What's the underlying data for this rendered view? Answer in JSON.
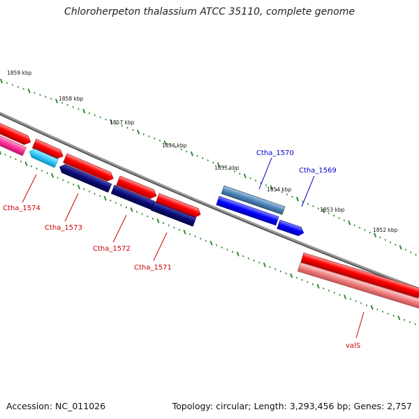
{
  "header": {
    "title": "Chloroherpeton thalassium ATCC 35110, complete genome"
  },
  "footer": {
    "accession": "Accession: NC_011026",
    "summary": "Topology: circular; Length: 3,293,456 bp; Genes: 2,757"
  },
  "ruler": {
    "labels": [
      "1859 kbp",
      "1858 kbp",
      "1857 kbp",
      "1856 kbp",
      "1855 kbp",
      "1854 kbp",
      "1853 kbp",
      "1852 kbp"
    ]
  },
  "genes": [
    {
      "label": "Ctha_1570",
      "color": "#0000cc"
    },
    {
      "label": "Ctha_1569",
      "color": "#0000cc"
    },
    {
      "label": "Ctha_1574",
      "color": "#cc0000"
    },
    {
      "label": "Ctha_1573",
      "color": "#cc0000"
    },
    {
      "label": "Ctha_1572",
      "color": "#cc0000"
    },
    {
      "label": "Ctha_1571",
      "color": "#cc0000"
    },
    {
      "label": "valS",
      "color": "#cc0000"
    }
  ],
  "colors": {
    "backbone": "#888888",
    "ticks": "#2e8b2e",
    "forward_red": "#ff0000",
    "reverse_pink": "#ff3399",
    "reverse_navy": "#0b0b7a",
    "reverse_cyan": "#33ccff",
    "reverse_blue": "#0000ff",
    "steel_blue": "#4f86b8",
    "light_red": "#f08080"
  }
}
